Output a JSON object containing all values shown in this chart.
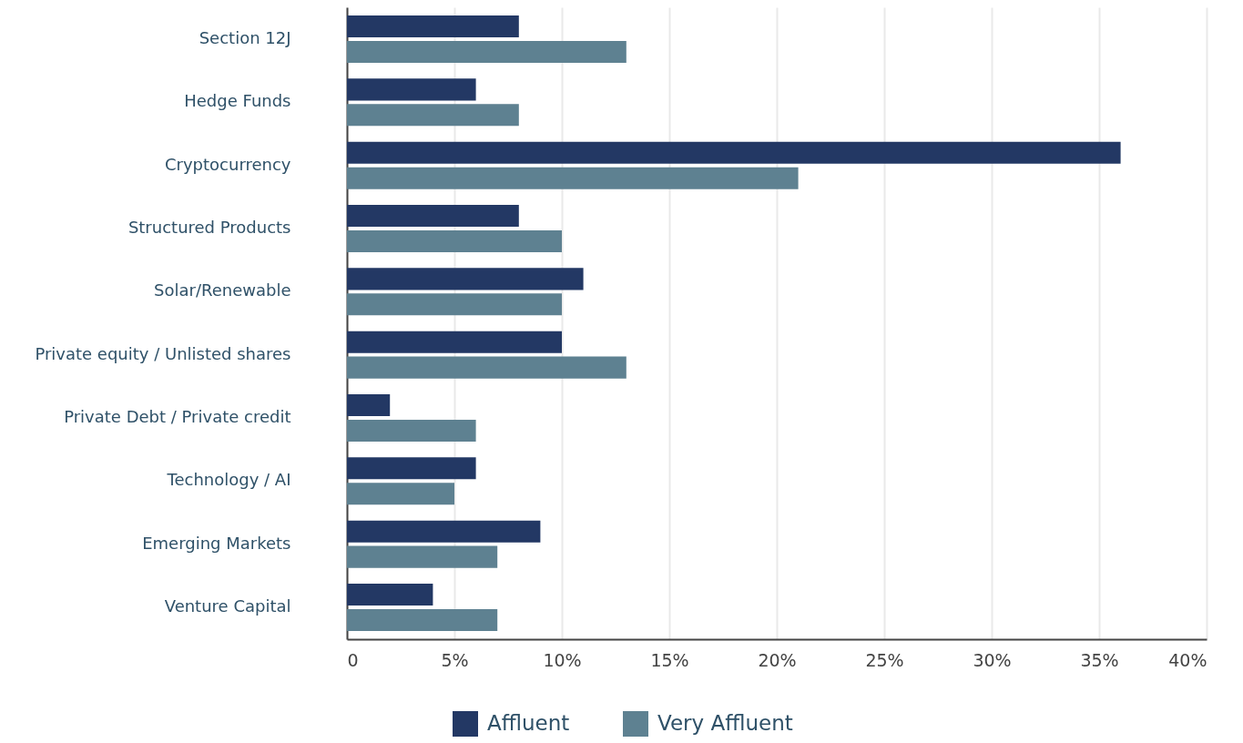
{
  "chart_data": {
    "type": "bar",
    "orientation": "horizontal",
    "categories": [
      "Section 12J",
      "Hedge Funds",
      "Cryptocurrency",
      "Structured Products",
      "Solar/Renewable",
      "Private equity / Unlisted shares",
      "Private Debt / Private credit",
      "Technology / AI",
      "Emerging Markets",
      "Venture Capital"
    ],
    "series": [
      {
        "name": "Affluent",
        "color": "#233864",
        "values": [
          8,
          6,
          36,
          8,
          11,
          10,
          2,
          6,
          9,
          4
        ]
      },
      {
        "name": "Very Affluent",
        "color": "#5e8191",
        "values": [
          13,
          8,
          21,
          10,
          10,
          13,
          6,
          5,
          7,
          7
        ]
      }
    ],
    "xlim": [
      0,
      40
    ],
    "xticks": [
      0,
      {
        "value": 5,
        "label": "5%"
      },
      {
        "value": 10,
        "label": "10%"
      },
      {
        "value": 15,
        "label": "15%"
      },
      {
        "value": 20,
        "label": "20%"
      },
      {
        "value": 25,
        "label": "25%"
      },
      {
        "value": 30,
        "label": "30%"
      },
      {
        "value": 35,
        "label": "35%"
      },
      {
        "value": 40,
        "label": "40%"
      }
    ],
    "grid": "x",
    "legend": "bottom"
  }
}
